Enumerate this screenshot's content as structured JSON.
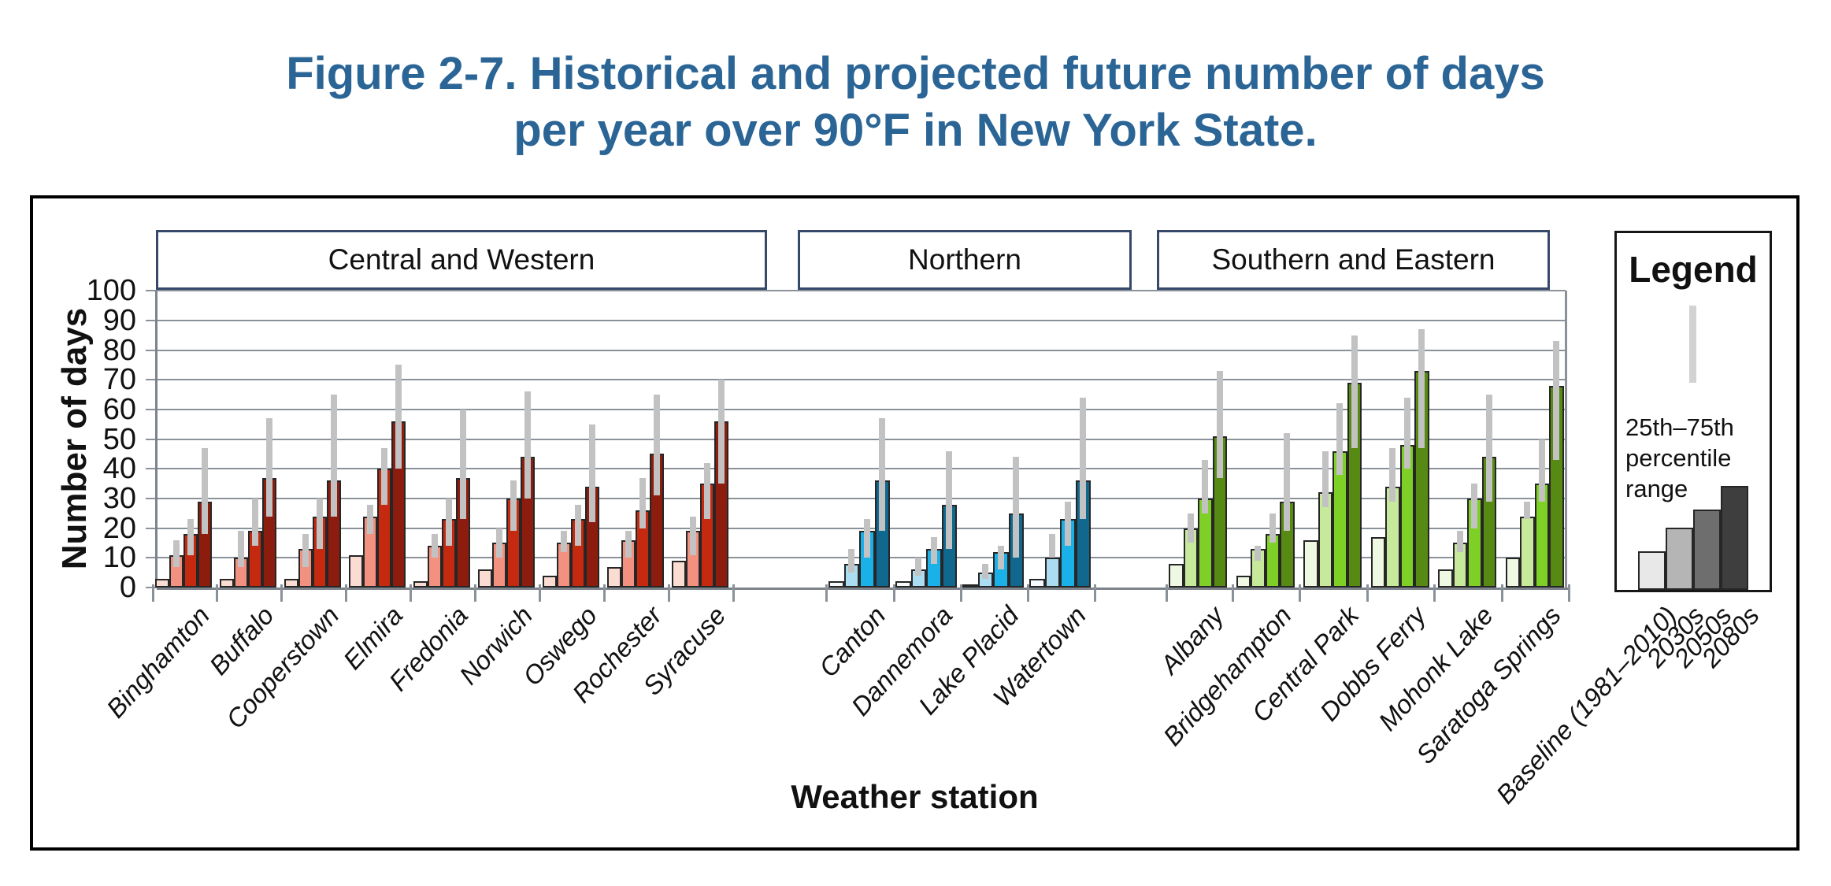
{
  "title": {
    "line1": "Figure 2-7. Historical and projected future number of days",
    "line2": "per year over 90°F in New York State.",
    "color": "#2b6596"
  },
  "chart_data": {
    "type": "bar",
    "title": "Historical and projected future number of days per year over 90°F in New York State",
    "xlabel": "Weather station",
    "ylabel": "Number of days",
    "ylim": [
      0,
      100
    ],
    "ytick_step": 10,
    "grid": true,
    "error_bars": "25th–75th percentile range",
    "series_labels": [
      "Baseline (1981–2010)",
      "2030s",
      "2050s",
      "2080s"
    ],
    "regions": [
      {
        "name": "Central and Western",
        "palette": [
          "#fbdcd2",
          "#f29180",
          "#c52a10",
          "#8c1d0e"
        ],
        "stations": [
          {
            "name": "Binghamton",
            "values": [
              3,
              11,
              18,
              29
            ],
            "errors": [
              null,
              [
                7,
                16
              ],
              [
                11,
                23
              ],
              [
                18,
                47
              ]
            ]
          },
          {
            "name": "Buffalo",
            "values": [
              3,
              10,
              19,
              37
            ],
            "errors": [
              null,
              [
                7,
                19
              ],
              [
                14,
                30
              ],
              [
                24,
                57
              ]
            ]
          },
          {
            "name": "Cooperstown",
            "values": [
              3,
              13,
              24,
              36
            ],
            "errors": [
              null,
              [
                7,
                18
              ],
              [
                13,
                30
              ],
              [
                24,
                65
              ]
            ]
          },
          {
            "name": "Elmira",
            "values": [
              11,
              24,
              40,
              56
            ],
            "errors": [
              null,
              [
                18,
                28
              ],
              [
                28,
                47
              ],
              [
                40,
                75
              ]
            ]
          },
          {
            "name": "Fredonia",
            "values": [
              2,
              14,
              23,
              37
            ],
            "errors": [
              null,
              [
                10,
                18
              ],
              [
                14,
                30
              ],
              [
                23,
                60
              ]
            ]
          },
          {
            "name": "Norwich",
            "values": [
              6,
              15,
              30,
              44
            ],
            "errors": [
              null,
              [
                10,
                20
              ],
              [
                19,
                36
              ],
              [
                30,
                66
              ]
            ]
          },
          {
            "name": "Oswego",
            "values": [
              4,
              15,
              23,
              34
            ],
            "errors": [
              null,
              [
                12,
                19
              ],
              [
                14,
                28
              ],
              [
                22,
                55
              ]
            ]
          },
          {
            "name": "Rochester",
            "values": [
              7,
              16,
              26,
              45
            ],
            "errors": [
              null,
              [
                10,
                19
              ],
              [
                20,
                37
              ],
              [
                31,
                65
              ]
            ]
          },
          {
            "name": "Syracuse",
            "values": [
              9,
              19,
              35,
              56
            ],
            "errors": [
              null,
              [
                11,
                24
              ],
              [
                23,
                42
              ],
              [
                35,
                70
              ]
            ]
          }
        ]
      },
      {
        "name": "Northern",
        "palette": [
          "#f4fafd",
          "#aadcf2",
          "#19b1e8",
          "#10688e"
        ],
        "stations": [
          {
            "name": "Canton",
            "values": [
              2,
              8,
              19,
              36
            ],
            "errors": [
              null,
              [
                5,
                13
              ],
              [
                10,
                23
              ],
              [
                19,
                57
              ]
            ]
          },
          {
            "name": "Dannemora",
            "values": [
              2,
              6,
              13,
              28
            ],
            "errors": [
              null,
              [
                4,
                10
              ],
              [
                8,
                17
              ],
              [
                13,
                46
              ]
            ]
          },
          {
            "name": "Lake Placid",
            "values": [
              1,
              5,
              12,
              25
            ],
            "errors": [
              null,
              [
                3,
                8
              ],
              [
                6,
                14
              ],
              [
                10,
                44
              ]
            ]
          },
          {
            "name": "Watertown",
            "values": [
              3,
              10,
              23,
              36
            ],
            "errors": [
              null,
              [
                10,
                18
              ],
              [
                14,
                29
              ],
              [
                23,
                64
              ]
            ]
          }
        ]
      },
      {
        "name": "Southern and Eastern",
        "palette": [
          "#eff8e2",
          "#c7e99b",
          "#7ed026",
          "#568a12"
        ],
        "stations": [
          {
            "name": "Albany",
            "values": [
              8,
              20,
              30,
              51
            ],
            "errors": [
              null,
              [
                15,
                25
              ],
              [
                25,
                43
              ],
              [
                37,
                73
              ]
            ]
          },
          {
            "name": "Bridgehampton",
            "values": [
              4,
              13,
              18,
              29
            ],
            "errors": [
              null,
              [
                9,
                14
              ],
              [
                15,
                25
              ],
              [
                19,
                52
              ]
            ]
          },
          {
            "name": "Central Park",
            "values": [
              16,
              32,
              46,
              69
            ],
            "errors": [
              null,
              [
                27,
                46
              ],
              [
                38,
                62
              ],
              [
                47,
                85
              ]
            ]
          },
          {
            "name": "Dobbs Ferry",
            "values": [
              17,
              34,
              48,
              73
            ],
            "errors": [
              null,
              [
                29,
                47
              ],
              [
                40,
                64
              ],
              [
                47,
                87
              ]
            ]
          },
          {
            "name": "Mohonk Lake",
            "values": [
              6,
              15,
              30,
              44
            ],
            "errors": [
              null,
              [
                12,
                19
              ],
              [
                20,
                35
              ],
              [
                29,
                65
              ]
            ]
          },
          {
            "name": "Saratoga Springs",
            "values": [
              10,
              24,
              35,
              68
            ],
            "errors": [
              null,
              [
                23,
                29
              ],
              [
                29,
                50
              ],
              [
                43,
                83
              ]
            ]
          }
        ]
      }
    ],
    "legend": {
      "title": "Legend",
      "range_label": "25th–75th percentile range",
      "bar_values": [
        13,
        21,
        27,
        35
      ],
      "palette": [
        "#e8e8e8",
        "#b5b5b5",
        "#6e6e6e",
        "#3e3e3e"
      ],
      "error_color": "#c2c2c2"
    }
  }
}
